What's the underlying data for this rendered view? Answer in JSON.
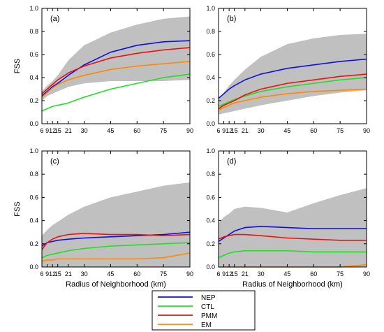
{
  "chart_data": [
    {
      "type": "line",
      "panel_label": "(a)",
      "ylabel": "FSS",
      "xlabel": "",
      "x_ticks": [
        6,
        9,
        12,
        15,
        21,
        30,
        45,
        60,
        75,
        90
      ],
      "y_ticks": [
        "0.0",
        "0.2",
        "0.4",
        "0.6",
        "0.8",
        "1.0"
      ],
      "xlim": [
        6,
        90
      ],
      "ylim": [
        0,
        1
      ],
      "x": [
        6,
        9,
        12,
        15,
        21,
        30,
        45,
        60,
        75,
        90
      ],
      "band": {
        "lower": [
          0.2,
          0.24,
          0.26,
          0.28,
          0.32,
          0.35,
          0.37,
          0.37,
          0.37,
          0.38
        ],
        "upper": [
          0.28,
          0.33,
          0.37,
          0.42,
          0.55,
          0.68,
          0.79,
          0.86,
          0.91,
          0.93
        ]
      },
      "series": [
        {
          "name": "NEP",
          "values": [
            0.24,
            0.28,
            0.32,
            0.35,
            0.42,
            0.51,
            0.62,
            0.68,
            0.71,
            0.72
          ]
        },
        {
          "name": "CTL",
          "values": [
            0.11,
            0.13,
            0.15,
            0.16,
            0.18,
            0.23,
            0.3,
            0.35,
            0.4,
            0.43
          ]
        },
        {
          "name": "PMM",
          "values": [
            0.26,
            0.3,
            0.34,
            0.38,
            0.44,
            0.5,
            0.57,
            0.61,
            0.64,
            0.66
          ]
        },
        {
          "name": "EM",
          "values": [
            0.23,
            0.27,
            0.31,
            0.34,
            0.38,
            0.42,
            0.47,
            0.5,
            0.52,
            0.54
          ]
        }
      ]
    },
    {
      "type": "line",
      "panel_label": "(b)",
      "ylabel": "",
      "xlabel": "",
      "x_ticks": [
        6,
        9,
        12,
        15,
        21,
        30,
        45,
        60,
        75,
        90
      ],
      "y_ticks": [
        "0.0",
        "0.2",
        "0.4",
        "0.6",
        "0.8",
        "1.0"
      ],
      "xlim": [
        6,
        90
      ],
      "ylim": [
        0,
        1
      ],
      "x": [
        6,
        9,
        12,
        15,
        21,
        30,
        45,
        60,
        75,
        90
      ],
      "band": {
        "lower": [
          0.08,
          0.09,
          0.1,
          0.11,
          0.13,
          0.16,
          0.2,
          0.24,
          0.27,
          0.29
        ],
        "upper": [
          0.22,
          0.27,
          0.33,
          0.38,
          0.47,
          0.58,
          0.69,
          0.74,
          0.77,
          0.78
        ]
      },
      "series": [
        {
          "name": "NEP",
          "values": [
            0.22,
            0.26,
            0.3,
            0.33,
            0.38,
            0.43,
            0.48,
            0.51,
            0.54,
            0.56
          ]
        },
        {
          "name": "CTL",
          "values": [
            0.15,
            0.17,
            0.19,
            0.21,
            0.24,
            0.28,
            0.32,
            0.35,
            0.38,
            0.4
          ]
        },
        {
          "name": "PMM",
          "values": [
            0.13,
            0.16,
            0.18,
            0.2,
            0.25,
            0.3,
            0.35,
            0.38,
            0.41,
            0.43
          ]
        },
        {
          "name": "EM",
          "values": [
            0.12,
            0.14,
            0.16,
            0.18,
            0.2,
            0.23,
            0.26,
            0.28,
            0.29,
            0.3
          ]
        }
      ]
    },
    {
      "type": "line",
      "panel_label": "(c)",
      "ylabel": "FSS",
      "xlabel": "Radius of Neighborhood (km)",
      "x_ticks": [
        6,
        9,
        12,
        15,
        21,
        30,
        45,
        60,
        75,
        90
      ],
      "y_ticks": [
        "0.0",
        "0.2",
        "0.4",
        "0.6",
        "0.8",
        "1.0"
      ],
      "xlim": [
        6,
        90
      ],
      "ylim": [
        0,
        1
      ],
      "x": [
        6,
        9,
        12,
        15,
        21,
        30,
        45,
        60,
        75,
        90
      ],
      "band": {
        "lower": [
          0.0,
          0.0,
          0.0,
          0.0,
          0.0,
          0.0,
          0.0,
          0.0,
          0.0,
          0.0
        ],
        "upper": [
          0.27,
          0.32,
          0.36,
          0.39,
          0.45,
          0.52,
          0.6,
          0.65,
          0.7,
          0.73
        ]
      },
      "series": [
        {
          "name": "NEP",
          "values": [
            0.18,
            0.21,
            0.22,
            0.23,
            0.24,
            0.25,
            0.26,
            0.27,
            0.28,
            0.3
          ]
        },
        {
          "name": "CTL",
          "values": [
            0.08,
            0.1,
            0.11,
            0.12,
            0.14,
            0.16,
            0.18,
            0.19,
            0.2,
            0.21
          ]
        },
        {
          "name": "PMM",
          "values": [
            0.15,
            0.21,
            0.24,
            0.26,
            0.28,
            0.29,
            0.28,
            0.28,
            0.27,
            0.28
          ]
        },
        {
          "name": "EM",
          "values": [
            0.05,
            0.06,
            0.06,
            0.07,
            0.07,
            0.07,
            0.07,
            0.07,
            0.08,
            0.12
          ]
        }
      ]
    },
    {
      "type": "line",
      "panel_label": "(d)",
      "ylabel": "",
      "xlabel": "Radius of Neighborhood (km)",
      "x_ticks": [
        6,
        9,
        12,
        15,
        21,
        30,
        45,
        60,
        75,
        90
      ],
      "y_ticks": [
        "0.0",
        "0.2",
        "0.4",
        "0.6",
        "0.8",
        "1.0"
      ],
      "xlim": [
        6,
        90
      ],
      "ylim": [
        0,
        1
      ],
      "x": [
        6,
        9,
        12,
        15,
        21,
        30,
        45,
        60,
        75,
        90
      ],
      "band": {
        "lower": [
          0.0,
          0.0,
          0.0,
          0.0,
          0.0,
          0.0,
          0.0,
          0.0,
          0.0,
          0.0
        ],
        "upper": [
          0.38,
          0.43,
          0.46,
          0.5,
          0.52,
          0.51,
          0.47,
          0.55,
          0.62,
          0.68
        ]
      },
      "series": [
        {
          "name": "NEP",
          "values": [
            0.22,
            0.25,
            0.28,
            0.31,
            0.34,
            0.35,
            0.34,
            0.33,
            0.33,
            0.33
          ]
        },
        {
          "name": "CTL",
          "values": [
            0.08,
            0.1,
            0.12,
            0.13,
            0.14,
            0.14,
            0.14,
            0.13,
            0.13,
            0.13
          ]
        },
        {
          "name": "PMM",
          "values": [
            0.24,
            0.26,
            0.27,
            0.28,
            0.28,
            0.27,
            0.25,
            0.24,
            0.23,
            0.23
          ]
        },
        {
          "name": "EM",
          "values": [
            0.0,
            0.0,
            0.0,
            0.0,
            0.0,
            0.0,
            0.0,
            0.0,
            0.0,
            0.02
          ]
        }
      ]
    }
  ],
  "legend": {
    "items": [
      {
        "label": "NEP",
        "color": "#1010dd"
      },
      {
        "label": "CTL",
        "color": "#22dd22"
      },
      {
        "label": "PMM",
        "color": "#ee1111"
      },
      {
        "label": "EM",
        "color": "#ff8800"
      }
    ]
  },
  "colors": {
    "NEP": "#1010dd",
    "CTL": "#22dd22",
    "PMM": "#ee1111",
    "EM": "#ff8800",
    "band": "#c0c0c0"
  }
}
